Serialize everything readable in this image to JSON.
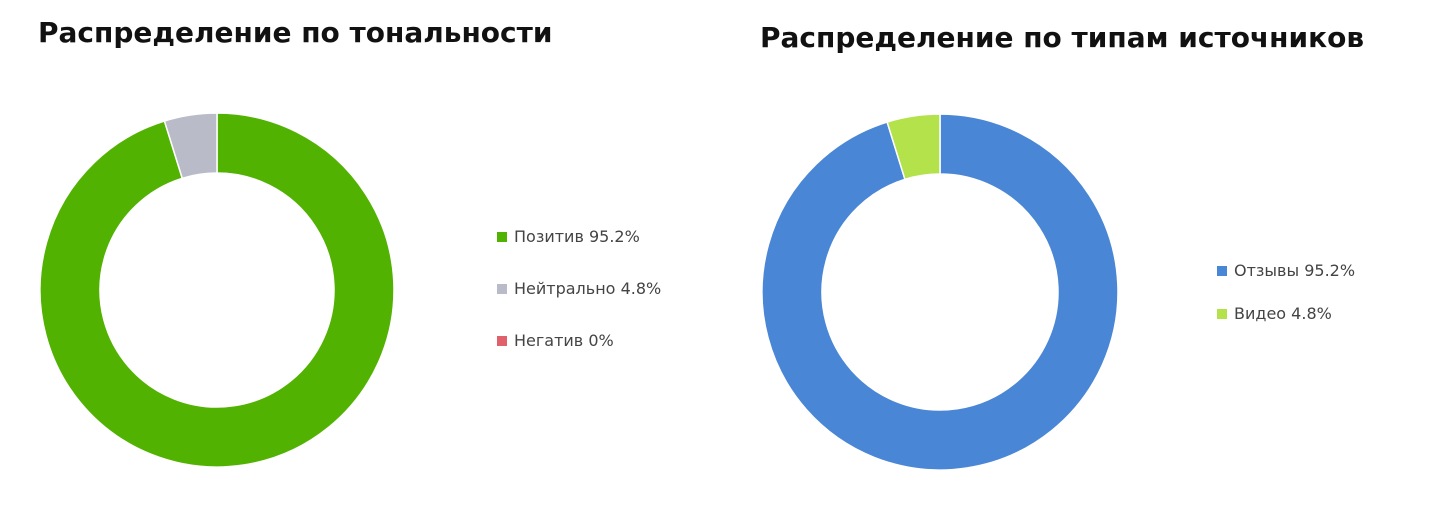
{
  "chart_data": [
    {
      "type": "donut",
      "title": "Распределение по тональности",
      "categories": [
        "Позитив",
        "Нейтрально",
        "Негатив"
      ],
      "values": [
        95.2,
        4.8,
        0
      ],
      "value_labels": [
        "95.2%",
        "4.8%",
        "0%"
      ],
      "colors": [
        "#52b202",
        "#b9bcc8",
        "#e0606c"
      ]
    },
    {
      "type": "donut",
      "title": "Распределение по типам источников",
      "categories": [
        "Отзывы",
        "Видео"
      ],
      "values": [
        95.2,
        4.8
      ],
      "value_labels": [
        "95.2%",
        "4.8%"
      ],
      "colors": [
        "#4a86d6",
        "#b3e24a"
      ]
    }
  ]
}
